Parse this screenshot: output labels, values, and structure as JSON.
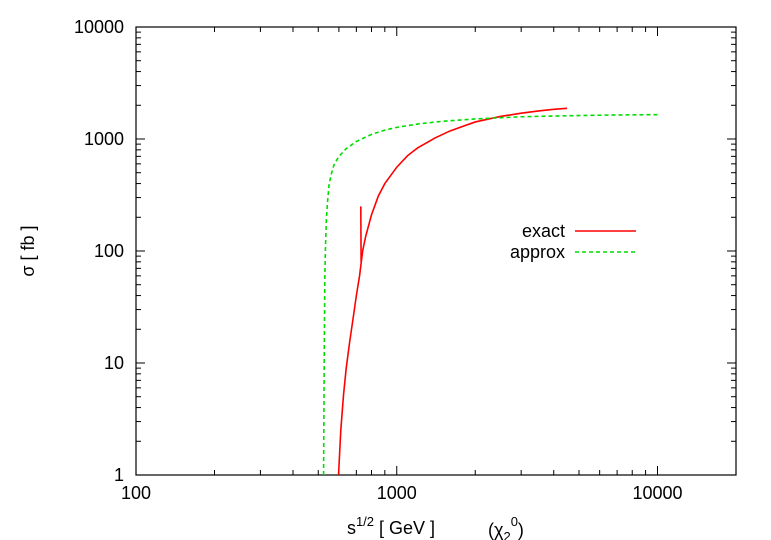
{
  "chart_data": {
    "type": "line",
    "xlabel_base": "s",
    "xlabel_sup": "1/2",
    "xlabel_unit": " [ GeV ]",
    "annotation_base": "(χ",
    "annotation_sub": "2",
    "annotation_sup": "0",
    "annotation_close": ")",
    "ylabel": "σ [ fb ]",
    "xscale": "log",
    "yscale": "log",
    "xlim": [
      100,
      20000
    ],
    "ylim": [
      1,
      10000
    ],
    "xticks": [
      100,
      1000,
      10000
    ],
    "xtick_labels": [
      "100",
      "1000",
      "10000"
    ],
    "yticks": [
      1,
      10,
      100,
      1000,
      10000
    ],
    "ytick_labels": [
      "1",
      "10",
      "100",
      "1000",
      "10000"
    ],
    "grid": false,
    "legend_position": "right",
    "series": [
      {
        "name": "exact",
        "color": "#ff0000",
        "dash": "solid",
        "x": [
          598,
          610,
          625,
          640,
          660,
          680,
          700,
          720,
          740,
          760,
          800,
          850,
          900,
          1000,
          1100,
          1200,
          1400,
          1600,
          2000,
          2500,
          3000,
          3500,
          4000,
          4500
        ],
        "y": [
          1,
          2.5,
          5.2,
          9,
          15.5,
          25,
          40,
          60,
          100,
          135,
          210,
          310,
          400,
          560,
          710,
          830,
          1020,
          1180,
          1420,
          1590,
          1700,
          1780,
          1840,
          1880
        ]
      },
      {
        "name": "",
        "color": "#ff0000",
        "dash": "solid",
        "x": [
          728,
          730
        ],
        "y": [
          250,
          80
        ]
      },
      {
        "name": "approx",
        "color": "#00dd00",
        "dash": "dashed",
        "x": [
          524,
          526,
          528,
          530,
          533,
          537,
          543,
          550,
          560,
          575,
          600,
          640,
          700,
          800,
          900,
          1000,
          1200,
          1500,
          2000,
          3000,
          5000,
          7000,
          10000
        ],
        "y": [
          1,
          5,
          20,
          60,
          110,
          190,
          280,
          390,
          480,
          590,
          700,
          820,
          950,
          1100,
          1200,
          1270,
          1360,
          1440,
          1510,
          1580,
          1620,
          1640,
          1650
        ]
      }
    ]
  }
}
